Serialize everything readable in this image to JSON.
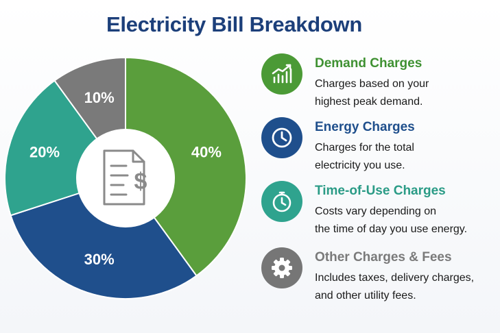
{
  "title": "Electricity Bill Breakdown",
  "chart_data": {
    "type": "pie",
    "title": "Electricity Bill Breakdown",
    "slices": [
      {
        "label": "Demand Charges",
        "value": 40,
        "display": "40%",
        "color": "#5a9e3c"
      },
      {
        "label": "Energy Charges",
        "value": 30,
        "display": "30%",
        "color": "#1f4f8c"
      },
      {
        "label": "Time-of-Use Charges",
        "value": 20,
        "display": "20%",
        "color": "#2fa38e"
      },
      {
        "label": "Other Charges & Fees",
        "value": 10,
        "display": "10%",
        "color": "#7a7a7a"
      }
    ],
    "donut": true,
    "center_icon": "invoice-dollar-icon"
  },
  "legend": [
    {
      "title": "Demand Charges",
      "desc": [
        "Charges based on your",
        "highest peak demand."
      ],
      "color": "#3f9132",
      "badge_color": "#4b9a36",
      "icon": "bar-chart-growth-icon"
    },
    {
      "title": "Energy Charges",
      "desc": [
        "Charges for the total",
        "electricity you use."
      ],
      "color": "#1f4f8c",
      "badge_color": "#1f4f8c",
      "icon": "clock-icon"
    },
    {
      "title": "Time-of-Use Charges",
      "desc": [
        "Costs vary depending on",
        "the time of day you use energy."
      ],
      "color": "#2a9b86",
      "badge_color": "#2fa38e",
      "icon": "timer-icon"
    },
    {
      "title": "Other Charges & Fees",
      "desc": [
        "Includes taxes, delivery charges,",
        "and other utility fees."
      ],
      "color": "#7a7a7a",
      "badge_color": "#767676",
      "icon": "gear-icon"
    }
  ]
}
